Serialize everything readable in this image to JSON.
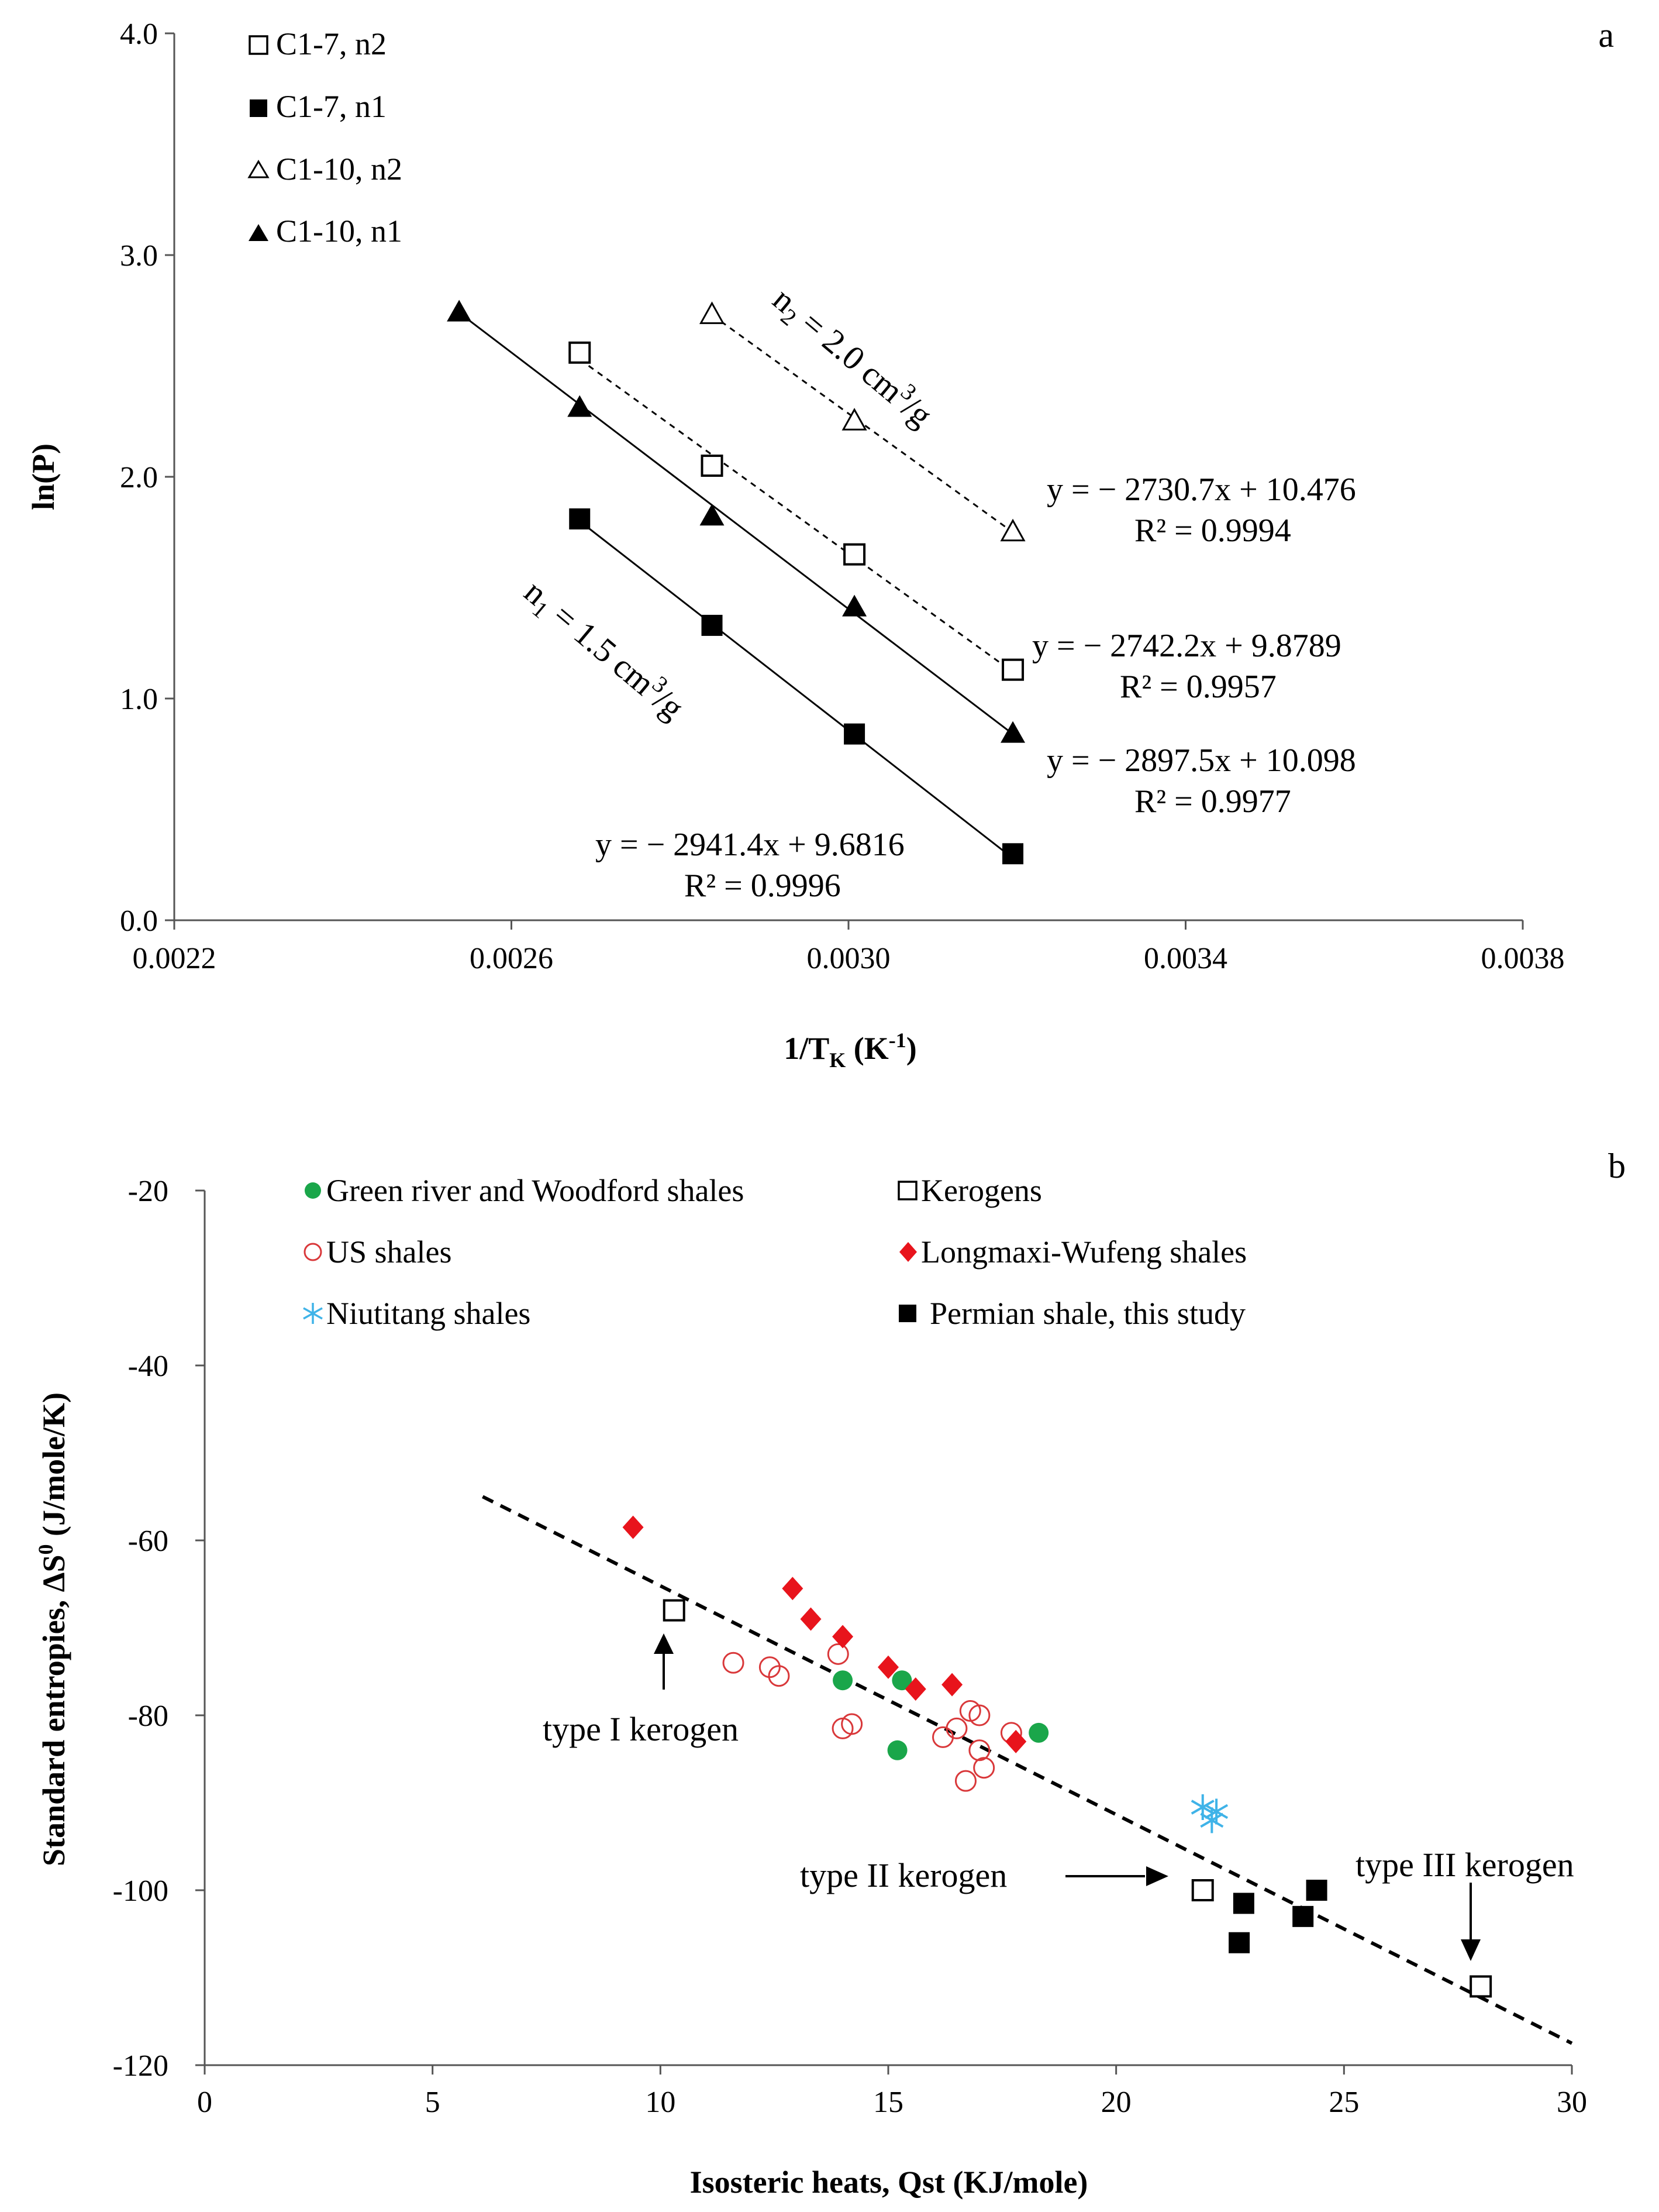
{
  "chart_data": [
    {
      "type": "scatter",
      "panel_label": "a",
      "xlabel_main": "1/T",
      "xlabel_sub": "K",
      "xlabel_unit_pre": " (K",
      "xlabel_unit_sup": "-1",
      "xlabel_unit_post": ")",
      "ylabel": "ln(P)",
      "xlim": [
        0.0022,
        0.0038
      ],
      "ylim": [
        0.0,
        4.0
      ],
      "xticks": [
        "0.0022",
        "0.0026",
        "0.0030",
        "0.0034",
        "0.0038"
      ],
      "yticks": [
        "0.0",
        "1.0",
        "2.0",
        "3.0",
        "4.0"
      ],
      "series": [
        {
          "name": "C1-7, n2",
          "marker": "square-open",
          "x": [
            0.002681,
            0.002838,
            0.003007,
            0.003195
          ],
          "y": [
            2.56,
            2.05,
            1.65,
            1.13
          ],
          "fit": {
            "style": "dashed",
            "x": [
              0.002681,
              0.003195
            ],
            "y": [
              2.53,
              1.12
            ]
          },
          "equation": "y = − 2742.2x + 9.8789",
          "r2": "R² = 0.9957"
        },
        {
          "name": "C1-7, n1",
          "marker": "square-filled",
          "x": [
            0.002681,
            0.002838,
            0.003007,
            0.003195
          ],
          "y": [
            1.81,
            1.33,
            0.84,
            0.3
          ],
          "fit": {
            "style": "solid",
            "x": [
              0.002681,
              0.003195
            ],
            "y": [
              1.8,
              0.28
            ]
          },
          "equation": "y = − 2941.4x + 9.6816",
          "r2": "R² = 0.9996"
        },
        {
          "name": "C1-10, n2",
          "marker": "triangle-open",
          "x": [
            0.002838,
            0.003007,
            0.003195
          ],
          "y": [
            2.73,
            2.25,
            1.75
          ],
          "fit": {
            "style": "dashed",
            "x": [
              0.002838,
              0.003195
            ],
            "y": [
              2.73,
              1.75
            ]
          },
          "equation": "y = − 2730.7x + 10.476",
          "r2": "R² = 0.9994"
        },
        {
          "name": "C1-10, n1",
          "marker": "triangle-filled",
          "x": [
            0.002538,
            0.002681,
            0.002838,
            0.003007,
            0.003195
          ],
          "y": [
            2.74,
            2.31,
            1.82,
            1.41,
            0.84
          ],
          "fit": {
            "style": "solid",
            "x": [
              0.002538,
              0.003195
            ],
            "y": [
              2.74,
              0.84
            ]
          },
          "equation": "y = − 2897.5x + 10.098",
          "r2": "R² = 0.9977"
        }
      ],
      "annotations": [
        {
          "pre": "n",
          "sub": "2",
          "mid": " = 2.0 cm",
          "sup": "3",
          "post": "/g"
        },
        {
          "pre": "n",
          "sub": "1",
          "mid": " = 1.5 cm",
          "sup": "3",
          "post": "/g"
        }
      ]
    },
    {
      "type": "scatter",
      "panel_label": "b",
      "xlabel": "Isosteric heats, Qst (KJ/mole)",
      "ylabel_pre": "Standard entropies, ΔS",
      "ylabel_sup": "0",
      "ylabel_post": " (J/mole/K)",
      "xlim": [
        0,
        30
      ],
      "ylim": [
        -120,
        -20
      ],
      "xticks": [
        "0",
        "5",
        "10",
        "15",
        "20",
        "25",
        "30"
      ],
      "yticks": [
        "-20",
        "-40",
        "-60",
        "-80",
        "-100",
        "-120"
      ],
      "trendline": {
        "style": "dashed",
        "x": [
          6.1,
          30
        ],
        "y": [
          -55,
          -117.5
        ]
      },
      "series": [
        {
          "name": "Green river and Woodford shales",
          "marker": "circle-filled",
          "color": "#1aa64a",
          "x": [
            14.0,
            15.3,
            15.2,
            18.3
          ],
          "y": [
            -76,
            -76,
            -84,
            -82
          ]
        },
        {
          "name": "Kerogens",
          "marker": "square-open",
          "color": "#000000",
          "x": [
            10.3,
            21.9,
            28.0
          ],
          "y": [
            -68,
            -100,
            -111
          ]
        },
        {
          "name": "US shales",
          "marker": "circle-open",
          "color": "#d9383a",
          "x": [
            11.6,
            12.4,
            12.6,
            13.9,
            14.0,
            14.2,
            16.2,
            16.5,
            16.8,
            17.0,
            16.7,
            17.1,
            17.7,
            17.0
          ],
          "y": [
            -74,
            -74.5,
            -75.5,
            -73,
            -81.5,
            -81,
            -82.5,
            -81.5,
            -79.5,
            -80,
            -87.5,
            -86,
            -82,
            -84
          ]
        },
        {
          "name": "Longmaxi-Wufeng shales",
          "marker": "diamond-filled",
          "color": "#e8141c",
          "x": [
            9.4,
            12.9,
            13.3,
            14.0,
            15.0,
            15.6,
            16.4,
            17.8
          ],
          "y": [
            -58.5,
            -65.5,
            -69,
            -71,
            -74.5,
            -77,
            -76.5,
            -83
          ]
        },
        {
          "name": "Niutitang shales",
          "marker": "asterisk",
          "color": "#3fb3e8",
          "x": [
            21.9,
            22.2,
            22.1
          ],
          "y": [
            -90.5,
            -91,
            -92
          ]
        },
        {
          "name": "Permian shale, this study",
          "marker": "square-filled",
          "color": "#000000",
          "x": [
            22.8,
            22.7,
            24.1,
            24.4
          ],
          "y": [
            -101.5,
            -106,
            -103,
            -100
          ]
        }
      ],
      "annotations": [
        {
          "text": "type I kerogen"
        },
        {
          "text": "type II kerogen"
        },
        {
          "text": "type III kerogen"
        }
      ]
    }
  ]
}
